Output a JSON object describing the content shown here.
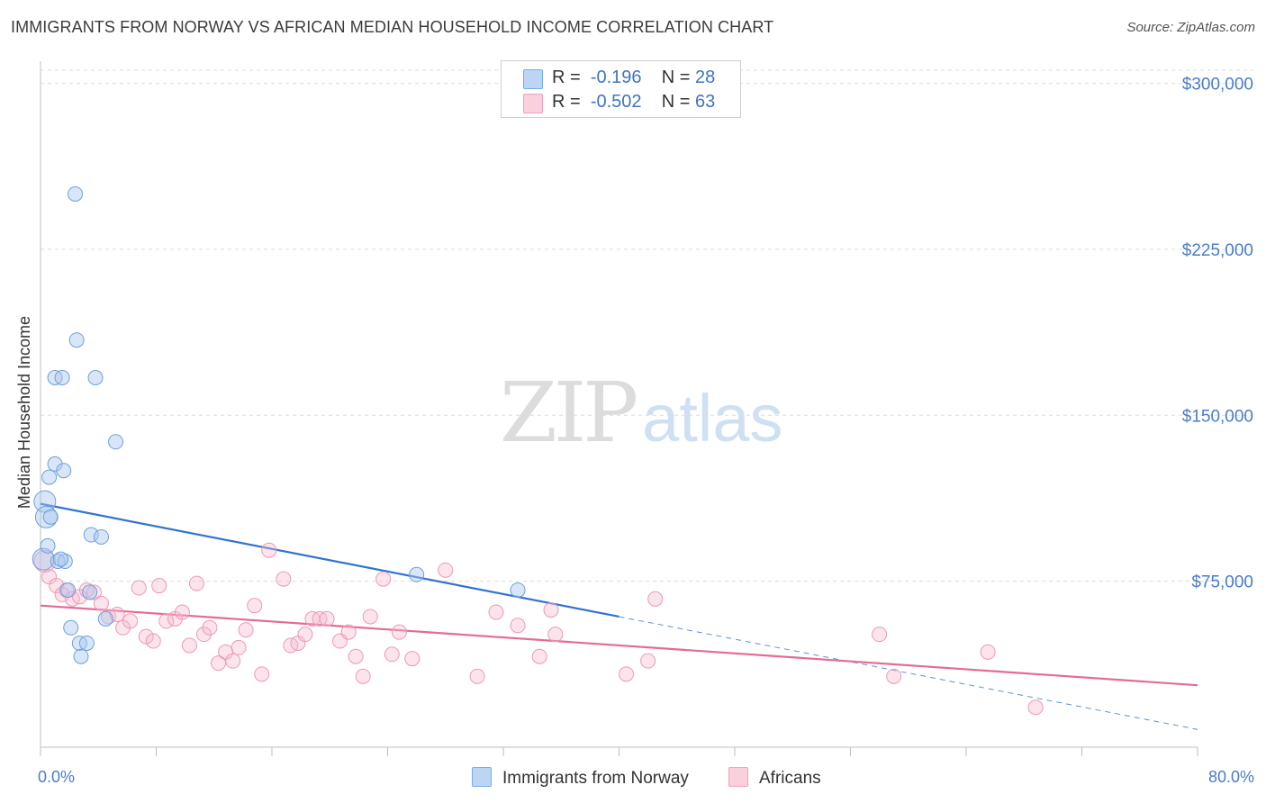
{
  "title": "IMMIGRANTS FROM NORWAY VS AFRICAN MEDIAN HOUSEHOLD INCOME CORRELATION CHART",
  "source": "Source: ZipAtlas.com",
  "watermark": {
    "zip": "ZIP",
    "atlas": "atlas"
  },
  "legend": {
    "rows": [
      {
        "r_label": "R =",
        "r_value": "-0.196",
        "n_label": "N =",
        "n_value": "28",
        "color": "#a8c8f0"
      },
      {
        "r_label": "R =",
        "r_value": "-0.502",
        "n_label": "N =",
        "n_value": "63",
        "color": "#f7b9cc"
      }
    ]
  },
  "bottom_legend": [
    {
      "label": "Immigrants from Norway",
      "color": "#a8c8f0"
    },
    {
      "label": "Africans",
      "color": "#f7b9cc"
    }
  ],
  "chart_data": {
    "type": "scatter",
    "title": "IMMIGRANTS FROM NORWAY VS AFRICAN MEDIAN HOUSEHOLD INCOME CORRELATION CHART",
    "xlabel": "",
    "ylabel": "Median Household Income",
    "xlim": [
      0,
      80
    ],
    "ylim": [
      0,
      310000
    ],
    "x_tick_labels": [
      "0.0%",
      "80.0%"
    ],
    "y_ticks": [
      {
        "value": 75000,
        "label": "$75,000"
      },
      {
        "value": 150000,
        "label": "$150,000"
      },
      {
        "value": 225000,
        "label": "$225,000"
      },
      {
        "value": 300000,
        "label": "$300,000"
      }
    ],
    "grid": true,
    "legend_position": "top-center",
    "series": [
      {
        "name": "Immigrants from Norway",
        "color": "#7aaae6",
        "points": [
          [
            0.2,
            85000
          ],
          [
            0.3,
            111000
          ],
          [
            0.4,
            104000
          ],
          [
            0.5,
            91000
          ],
          [
            0.6,
            122000
          ],
          [
            0.7,
            104000
          ],
          [
            1.0,
            128000
          ],
          [
            1.0,
            167000
          ],
          [
            1.2,
            84000
          ],
          [
            1.5,
            167000
          ],
          [
            1.6,
            125000
          ],
          [
            1.7,
            84000
          ],
          [
            1.9,
            71000
          ],
          [
            2.1,
            54000
          ],
          [
            2.4,
            250000
          ],
          [
            2.5,
            184000
          ],
          [
            2.7,
            47000
          ],
          [
            2.8,
            41000
          ],
          [
            3.2,
            47000
          ],
          [
            3.4,
            70000
          ],
          [
            3.5,
            96000
          ],
          [
            3.8,
            167000
          ],
          [
            4.2,
            95000
          ],
          [
            4.5,
            58000
          ],
          [
            5.2,
            138000
          ],
          [
            26.0,
            78000
          ],
          [
            33.0,
            71000
          ],
          [
            1.4,
            85000
          ]
        ],
        "trend": {
          "x_start": 0,
          "y_start": 110000,
          "x_solid_end": 40,
          "y_solid_end": 59000,
          "x_end": 80,
          "y_end": 8000
        }
      },
      {
        "name": "Africans",
        "color": "#f0a0ba",
        "points": [
          [
            0.3,
            84000
          ],
          [
            0.6,
            77000
          ],
          [
            1.1,
            73000
          ],
          [
            1.5,
            69000
          ],
          [
            1.8,
            71000
          ],
          [
            2.2,
            67000
          ],
          [
            2.7,
            68000
          ],
          [
            3.2,
            71000
          ],
          [
            3.7,
            70000
          ],
          [
            4.2,
            65000
          ],
          [
            4.7,
            59000
          ],
          [
            5.3,
            60000
          ],
          [
            5.7,
            54000
          ],
          [
            6.2,
            57000
          ],
          [
            6.8,
            72000
          ],
          [
            7.3,
            50000
          ],
          [
            7.8,
            48000
          ],
          [
            8.2,
            73000
          ],
          [
            8.7,
            57000
          ],
          [
            9.3,
            58000
          ],
          [
            9.8,
            61000
          ],
          [
            10.3,
            46000
          ],
          [
            10.8,
            74000
          ],
          [
            11.3,
            51000
          ],
          [
            11.7,
            54000
          ],
          [
            12.3,
            38000
          ],
          [
            12.8,
            43000
          ],
          [
            13.3,
            39000
          ],
          [
            13.7,
            45000
          ],
          [
            14.2,
            53000
          ],
          [
            14.8,
            64000
          ],
          [
            15.3,
            33000
          ],
          [
            15.8,
            89000
          ],
          [
            16.8,
            76000
          ],
          [
            17.3,
            46000
          ],
          [
            17.8,
            47000
          ],
          [
            18.3,
            51000
          ],
          [
            18.8,
            58000
          ],
          [
            19.3,
            58000
          ],
          [
            19.8,
            58000
          ],
          [
            20.7,
            48000
          ],
          [
            21.3,
            52000
          ],
          [
            21.8,
            41000
          ],
          [
            22.3,
            32000
          ],
          [
            22.8,
            59000
          ],
          [
            23.7,
            76000
          ],
          [
            24.3,
            42000
          ],
          [
            24.8,
            52000
          ],
          [
            25.7,
            40000
          ],
          [
            28.0,
            80000
          ],
          [
            30.2,
            32000
          ],
          [
            31.5,
            61000
          ],
          [
            33.0,
            55000
          ],
          [
            34.5,
            41000
          ],
          [
            35.3,
            62000
          ],
          [
            35.6,
            51000
          ],
          [
            40.5,
            33000
          ],
          [
            42.0,
            39000
          ],
          [
            42.5,
            67000
          ],
          [
            58.0,
            51000
          ],
          [
            59.0,
            32000
          ],
          [
            65.5,
            43000
          ],
          [
            68.8,
            18000
          ]
        ],
        "trend": {
          "x_start": 0,
          "y_start": 64000,
          "x_end": 80,
          "y_end": 28000
        }
      }
    ]
  }
}
